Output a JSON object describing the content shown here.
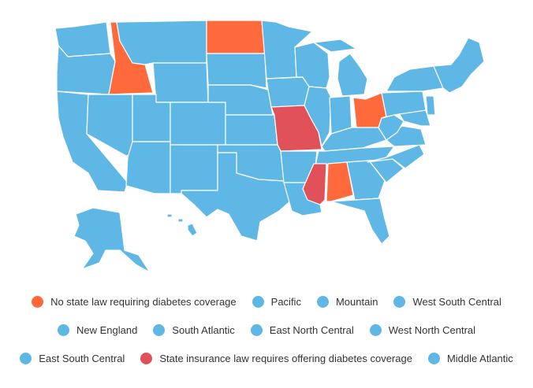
{
  "colors": {
    "no_law": "#ff6a3d",
    "offering": "#e0515a",
    "region": "#5fb7e5",
    "border": "#ffffff"
  },
  "legend": {
    "no_law": "No state law requiring diabetes coverage",
    "pacific": "Pacific",
    "mountain": "Mountain",
    "west_south_central": "West South Central",
    "new_england": "New England",
    "south_atlantic": "South Atlantic",
    "east_north_central": "East North Central",
    "west_north_central": "West North Central",
    "east_south_central": "East South Central",
    "offering": "State insurance law requires offering diabetes coverage",
    "middle_atlantic": "Middle Atlantic"
  },
  "states_highlighted": {
    "no_law": [
      "Idaho",
      "North Dakota",
      "Ohio",
      "Alabama"
    ],
    "offering": [
      "Missouri",
      "Mississippi"
    ]
  }
}
